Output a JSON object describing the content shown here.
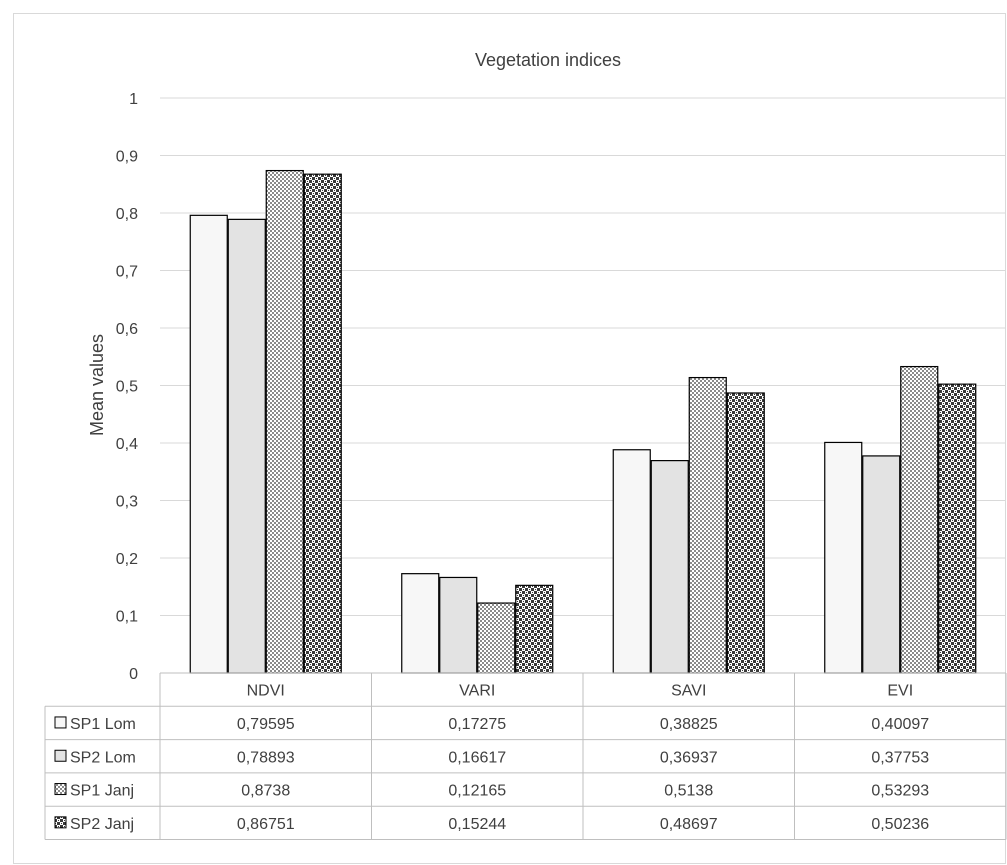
{
  "chart_data": {
    "type": "bar",
    "title": "Vegetation indices",
    "xlabel": "",
    "ylabel": "Mean values",
    "ylim": [
      0,
      1
    ],
    "yticks": [
      "0",
      "0,1",
      "0,2",
      "0,3",
      "0,4",
      "0,5",
      "0,6",
      "0,7",
      "0,8",
      "0,9",
      "1"
    ],
    "grid": true,
    "legend": "data-table",
    "categories": [
      "NDVI",
      "VARI",
      "SAVI",
      "EVI"
    ],
    "series": [
      {
        "name": "SP1 Lom",
        "pattern": "plain",
        "color": "#f7f7f7",
        "values": [
          0.79595,
          0.17275,
          0.38825,
          0.40097
        ],
        "labels": [
          "0,79595",
          "0,17275",
          "0,38825",
          "0,40097"
        ]
      },
      {
        "name": "SP2 Lom",
        "pattern": "plain",
        "color": "#e3e3e3",
        "values": [
          0.78893,
          0.16617,
          0.36937,
          0.37753
        ],
        "labels": [
          "0,78893",
          "0,16617",
          "0,36937",
          "0,37753"
        ]
      },
      {
        "name": "SP1 Janj",
        "pattern": "fine-checker",
        "color": "#9a9a9a",
        "values": [
          0.8738,
          0.12165,
          0.5138,
          0.53293
        ],
        "labels": [
          "0,8738",
          "0,12165",
          "0,5138",
          "0,53293"
        ]
      },
      {
        "name": "SP2 Janj",
        "pattern": "coarse-checker",
        "color": "#444444",
        "values": [
          0.86751,
          0.15244,
          0.48697,
          0.50236
        ],
        "labels": [
          "0,86751",
          "0,15244",
          "0,48697",
          "0,50236"
        ]
      }
    ]
  }
}
